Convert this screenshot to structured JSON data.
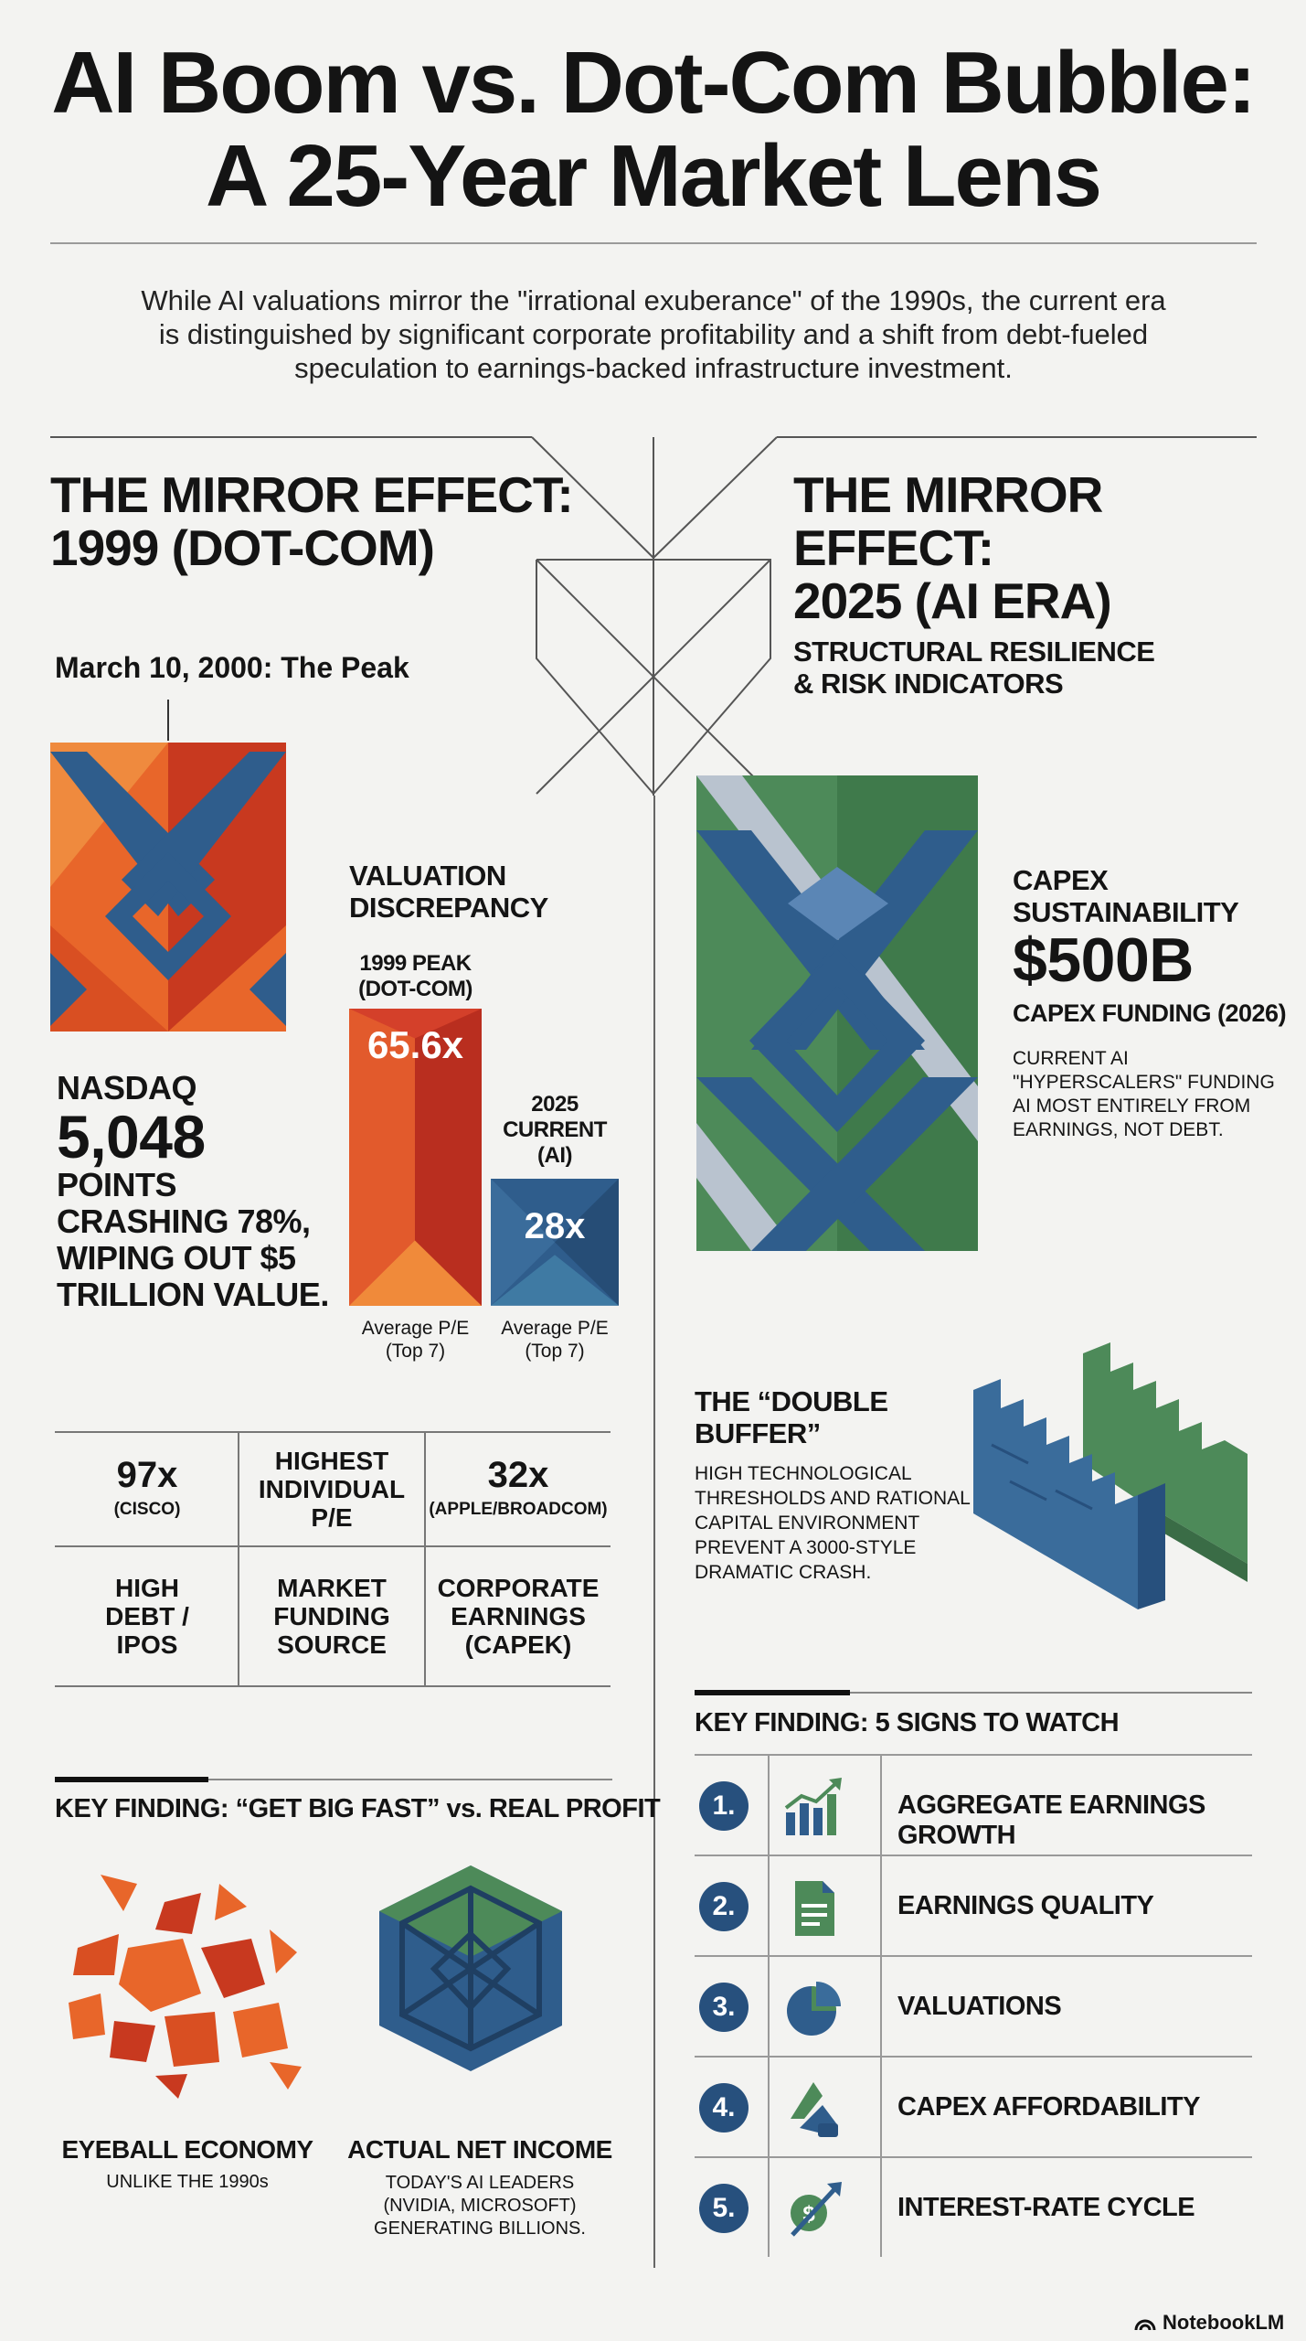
{
  "title": {
    "line1": "AI Boom vs. Dot-Com Bubble:",
    "line2": "A 25-Year Market Lens"
  },
  "intro": "While AI valuations mirror the \"irrational exuberance\" of the 1990s, the current era is distinguished by significant corporate profitability and a shift from debt-fueled speculation to earnings-backed infrastructure investment.",
  "left": {
    "heading_line1": "THE MIRROR EFFECT:",
    "heading_line2": "1999 (DOT-COM)",
    "peak_label": "March 10, 2000: The Peak",
    "nasdaq": {
      "label": "NASDAQ",
      "value": "5,048",
      "line1": "POINTS",
      "line2": "CRASHING 78%,",
      "line3": "WIPING OUT $5",
      "line4": "TRILLION VALUE."
    },
    "valuation": {
      "title_line1": "VALUATION",
      "title_line2": "DISCREPANCY",
      "bar1": {
        "label_line1": "1999 PEAK",
        "label_line2": "(DOT-COM)",
        "value": "65.6x",
        "numeric": 65.6,
        "caption_line1": "Average P/E",
        "caption_line2": "(Top 7)"
      },
      "bar2": {
        "label_line1": "2025",
        "label_line2": "CURRENT",
        "label_line3": "(AI)",
        "value": "28x",
        "numeric": 28,
        "caption_line1": "Average P/E",
        "caption_line2": "(Top 7)"
      }
    },
    "grid": {
      "r1c1_big": "97x",
      "r1c1_small": "(CISCO)",
      "r1c2_l1": "HIGHEST",
      "r1c2_l2": "INDIVIDUAL",
      "r1c2_l3": "P/E",
      "r1c3_big": "32x",
      "r1c3_small": "(APPLE/BROADCOM)",
      "r2c1_l1": "HIGH",
      "r2c1_l2": "DEBT /",
      "r2c1_l3": "IPOS",
      "r2c2_l1": "MARKET",
      "r2c2_l2": "FUNDING",
      "r2c2_l3": "SOURCE",
      "r2c3_l1": "CORPORATE",
      "r2c3_l2": "EARNINGS",
      "r2c3_l3": "(CAPEK)"
    },
    "key_finding": "KEY FINDING: “GET BIG FAST” vs. REAL PROFIT",
    "eyeball": {
      "title": "EYEBALL ECONOMY",
      "sub": "UNLIKE THE 1990s"
    },
    "net_income": {
      "title": "ACTUAL NET INCOME",
      "sub_line1": "TODAY'S AI LEADERS",
      "sub_line2": "(NVIDIA, MICROSOFT)",
      "sub_line3": "GENERATING BILLIONS."
    }
  },
  "right": {
    "heading_line1": "THE MIRROR EFFECT:",
    "heading_line2": "2025 (AI ERA)",
    "structural_line1": "STRUCTURAL RESILIENCE",
    "structural_line2": "& RISK INDICATORS",
    "capex": {
      "title_line1": "CAPEX",
      "title_line2": "SUSTAINABILITY",
      "value": "$500B",
      "funding": "CAPEX FUNDING (2026)",
      "desc_line1": "CURRENT AI",
      "desc_line2": "\"HYPERSCALERS\" FUNDING",
      "desc_line3": "AI MOST ENTIRELY FROM",
      "desc_line4": "EARNINGS, NOT DEBT."
    },
    "buffer": {
      "title_line1": "THE “DOUBLE",
      "title_line2": "BUFFER”",
      "desc_line1": "HIGH TECHNOLOGICAL",
      "desc_line2": "THRESHOLDS AND RATIONAL",
      "desc_line3": "CAPITAL ENVIRONMENT",
      "desc_line4": "PREVENT A 3000-STYLE",
      "desc_line5": "DRAMATIC CRASH."
    },
    "signs_title": "KEY FINDING: 5 SIGNS TO WATCH",
    "signs": [
      {
        "num": "1.",
        "label": "AGGREGATE EARNINGS GROWTH",
        "icon": "growth-chart-icon"
      },
      {
        "num": "2.",
        "label": "EARNINGS QUALITY",
        "icon": "document-icon"
      },
      {
        "num": "3.",
        "label": "VALUATIONS",
        "icon": "pie-chart-icon"
      },
      {
        "num": "4.",
        "label": "CAPEX AFFORDABILITY",
        "icon": "capex-icon"
      },
      {
        "num": "5.",
        "label": "INTEREST-RATE CYCLE",
        "icon": "dollar-arrow-icon"
      }
    ]
  },
  "footer": {
    "brand": "NotebookLM"
  },
  "colors": {
    "orange": "#e8662a",
    "red": "#c8321f",
    "blue": "#2f5d8c",
    "green": "#4d8a59",
    "navy": "#27507d"
  }
}
